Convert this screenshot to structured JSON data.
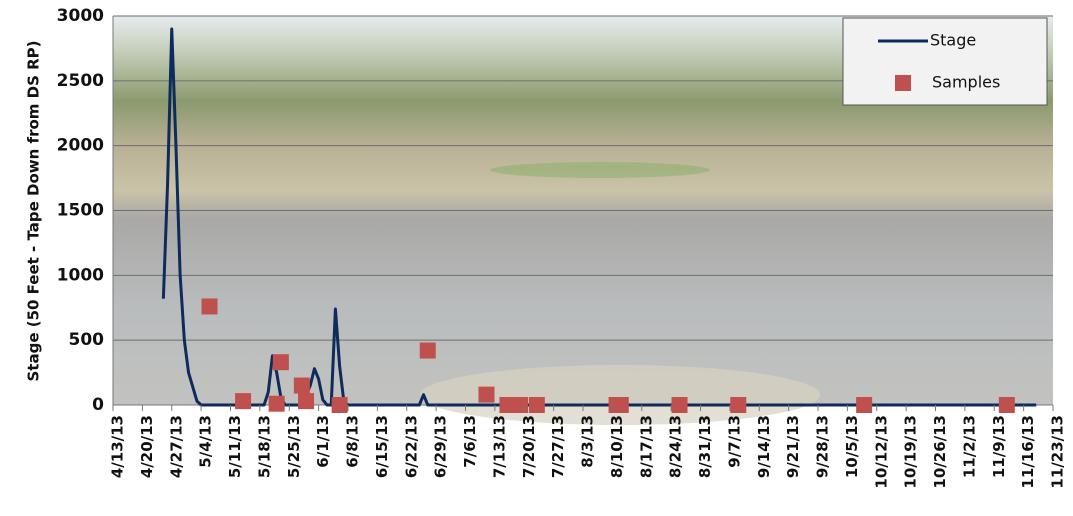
{
  "chart_data": {
    "type": "line",
    "y_label": "Stage (50 Feet - Tape Down from DS RP)",
    "xlim": [
      "4/13/13",
      "11/23/13"
    ],
    "xticks": [
      "4/13/13",
      "4/20/13",
      "4/27/13",
      "5/4/13",
      "5/11/13",
      "5/18/13",
      "5/25/13",
      "6/1/13",
      "6/8/13",
      "6/15/13",
      "6/22/13",
      "6/29/13",
      "7/6/13",
      "7/13/13",
      "7/20/13",
      "7/27/13",
      "8/3/13",
      "8/10/13",
      "8/17/13",
      "8/24/13",
      "8/31/13",
      "9/7/13",
      "9/14/13",
      "9/21/13",
      "9/28/13",
      "10/5/13",
      "10/12/13",
      "10/19/13",
      "10/26/13",
      "11/2/13",
      "11/9/13",
      "11/16/13",
      "11/23/13"
    ],
    "ylim": [
      0,
      3000
    ],
    "yticks": [
      0,
      500,
      1000,
      1500,
      2000,
      2500,
      3000
    ],
    "grid": true,
    "legend": "top-right",
    "series": [
      {
        "name": "Stage",
        "type": "line",
        "color": "#0f2a5c",
        "x": [
          "4/25/13",
          "4/26/13",
          "4/27/13",
          "4/28/13",
          "4/29/13",
          "4/30/13",
          "5/1/13",
          "5/3/13",
          "5/4/13",
          "5/19/13",
          "5/20/13",
          "5/21/13",
          "5/22/13",
          "5/23/13",
          "5/24/13",
          "5/28/13",
          "5/30/13",
          "5/31/13",
          "6/1/13",
          "6/2/13",
          "6/3/13",
          "6/4/13",
          "6/5/13",
          "6/6/13",
          "6/7/13",
          "6/8/13",
          "6/25/13",
          "6/26/13",
          "6/27/13",
          "11/19/13"
        ],
        "values": [
          820,
          1700,
          2900,
          2000,
          1000,
          500,
          250,
          30,
          0,
          0,
          100,
          380,
          250,
          60,
          0,
          0,
          150,
          280,
          200,
          40,
          0,
          0,
          740,
          300,
          30,
          0,
          0,
          80,
          0,
          0
        ]
      },
      {
        "name": "Samples",
        "type": "scatter",
        "color": "#c0504d",
        "x": [
          "5/6/13",
          "5/14/13",
          "5/22/13",
          "5/23/13",
          "5/28/13",
          "5/29/13",
          "6/6/13",
          "6/27/13",
          "7/11/13",
          "7/16/13",
          "7/19/13",
          "7/23/13",
          "8/11/13",
          "8/12/13",
          "8/26/13",
          "9/9/13",
          "10/9/13",
          "11/12/13"
        ],
        "values": [
          760,
          30,
          10,
          330,
          150,
          30,
          0,
          420,
          80,
          0,
          0,
          0,
          0,
          0,
          0,
          0,
          0,
          0
        ]
      }
    ]
  }
}
